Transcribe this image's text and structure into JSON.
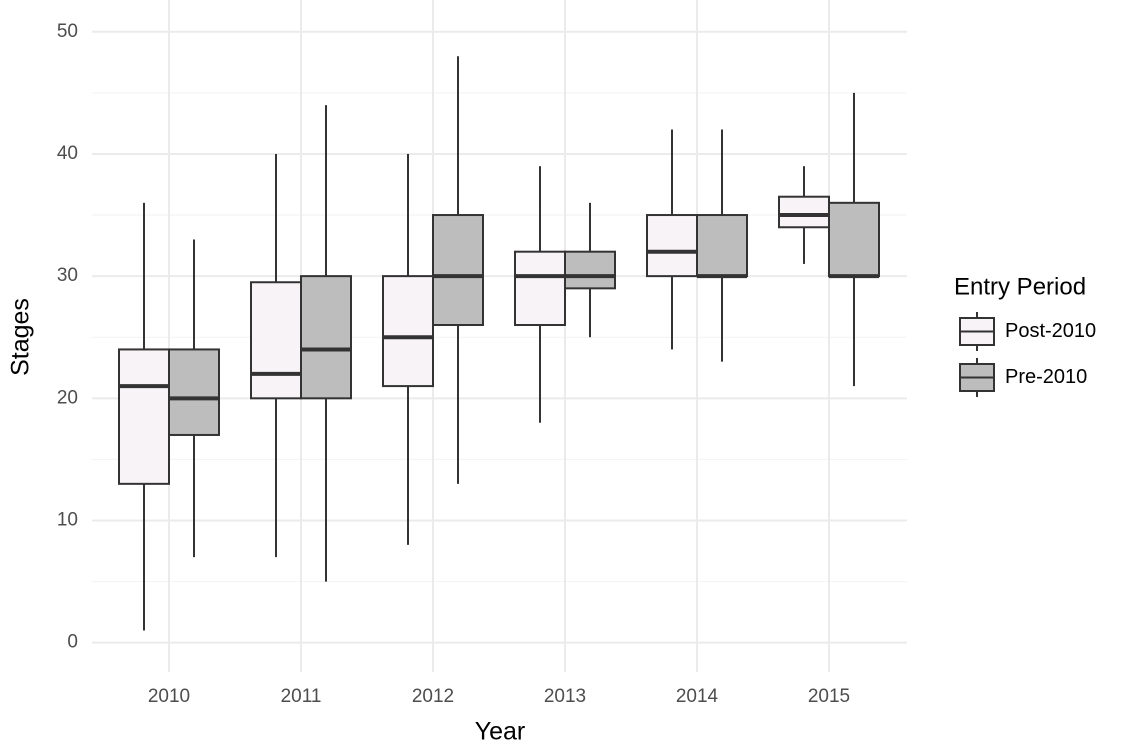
{
  "chart_data": {
    "type": "boxplot",
    "x_label": "Year",
    "y_label": "Stages",
    "categories": [
      "2010",
      "2011",
      "2012",
      "2013",
      "2014",
      "2015"
    ],
    "ylim": [
      -2.4,
      52.6
    ],
    "yticks": [
      0,
      10,
      20,
      30,
      40,
      50
    ],
    "minor_yticks": [
      5,
      15,
      25,
      35,
      45
    ],
    "grid": true,
    "legend_title": "Entry Period",
    "legend_position": "right",
    "series": [
      {
        "name": "Post-2010",
        "color": "#f7f3f7",
        "min": [
          1,
          7,
          8,
          18,
          24,
          31
        ],
        "q1": [
          13,
          20,
          21,
          26,
          30,
          34
        ],
        "median": [
          21,
          22,
          25,
          30,
          32,
          35
        ],
        "q3": [
          24,
          29.5,
          30,
          32,
          35,
          36.5
        ],
        "max": [
          36,
          40,
          40,
          39,
          42,
          39
        ]
      },
      {
        "name": "Pre-2010",
        "color": "#bdbdbd",
        "min": [
          7,
          5,
          13,
          25,
          23,
          21
        ],
        "q1": [
          17,
          20,
          26,
          29,
          30,
          30
        ],
        "median": [
          20,
          24,
          30,
          30,
          30,
          30
        ],
        "q3": [
          24,
          30,
          35,
          32,
          35,
          36
        ],
        "max": [
          33,
          44,
          48,
          36,
          42,
          45
        ]
      }
    ]
  }
}
